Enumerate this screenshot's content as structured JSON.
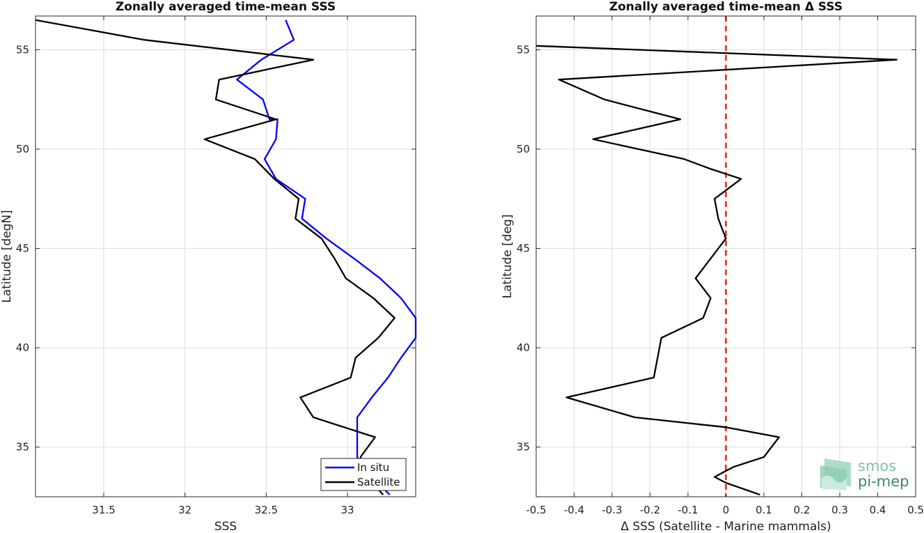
{
  "chart_data": [
    {
      "type": "line",
      "title": "Zonally averaged time-mean SSS",
      "xlabel": "SSS",
      "ylabel": "Latitude [degN]",
      "xlim": [
        31.08,
        33.42
      ],
      "ylim": [
        32.5,
        56.7
      ],
      "xticks": [
        "31.5",
        "32",
        "32.5",
        "33"
      ],
      "yticks": [
        "35",
        "40",
        "45",
        "50",
        "55"
      ],
      "grid": true,
      "legend": "bottom-right",
      "series": [
        {
          "name": "In situ",
          "color": "#0000ff",
          "points": [
            [
              32.62,
              56.5
            ],
            [
              32.67,
              55.5
            ],
            [
              32.47,
              54.5
            ],
            [
              32.32,
              53.5
            ],
            [
              32.48,
              52.5
            ],
            [
              32.52,
              51.5
            ],
            [
              32.57,
              51.5
            ],
            [
              32.56,
              50.5
            ],
            [
              32.49,
              49.5
            ],
            [
              32.56,
              48.5
            ],
            [
              32.74,
              47.5
            ],
            [
              32.72,
              46.5
            ],
            [
              32.87,
              45.5
            ],
            [
              33.04,
              44.5
            ],
            [
              33.2,
              43.5
            ],
            [
              33.33,
              42.5
            ],
            [
              33.42,
              41.5
            ],
            [
              33.42,
              40.5
            ],
            [
              33.33,
              39.5
            ],
            [
              33.25,
              38.5
            ],
            [
              33.15,
              37.5
            ],
            [
              33.06,
              36.5
            ],
            [
              33.06,
              35.5
            ],
            [
              33.06,
              34.5
            ],
            [
              33.15,
              33.5
            ],
            [
              33.26,
              32.6
            ]
          ]
        },
        {
          "name": "Satellite",
          "color": "#000000",
          "points": [
            [
              31.08,
              56.5
            ],
            [
              31.75,
              55.5
            ],
            [
              32.79,
              54.5
            ],
            [
              32.21,
              53.5
            ],
            [
              32.19,
              52.5
            ],
            [
              32.56,
              51.5
            ],
            [
              32.12,
              50.5
            ],
            [
              32.43,
              49.5
            ],
            [
              32.55,
              48.5
            ],
            [
              32.7,
              47.5
            ],
            [
              32.68,
              46.5
            ],
            [
              32.84,
              45.5
            ],
            [
              32.92,
              44.5
            ],
            [
              32.99,
              43.5
            ],
            [
              33.16,
              42.5
            ],
            [
              33.29,
              41.5
            ],
            [
              33.19,
              40.5
            ],
            [
              33.05,
              39.5
            ],
            [
              33.02,
              38.5
            ],
            [
              32.71,
              37.5
            ],
            [
              32.79,
              36.5
            ],
            [
              33.17,
              35.5
            ],
            [
              33.08,
              34.5
            ],
            [
              33.12,
              33.5
            ],
            [
              33.22,
              32.6
            ]
          ]
        }
      ]
    },
    {
      "type": "line",
      "title": "Zonally averaged time-mean Δ SSS",
      "xlabel": "Δ SSS (Satellite - Marine mammals)",
      "ylabel": "Latitude [deg]",
      "xlim": [
        -0.5,
        0.5
      ],
      "ylim": [
        32.5,
        56.7
      ],
      "xticks": [
        "-0.5",
        "-0.4",
        "-0.3",
        "-0.2",
        "-0.1",
        "0",
        "0.1",
        "0.2",
        "0.3",
        "0.4",
        "0.5"
      ],
      "yticks": [
        "35",
        "40",
        "45",
        "50",
        "55"
      ],
      "grid": true,
      "reference_line": {
        "x": 0,
        "color": "#e82020",
        "style": "dashed"
      },
      "series": [
        {
          "name": "",
          "color": "#000000",
          "points": [
            [
              -0.5,
              55.2
            ],
            [
              0.45,
              54.5
            ],
            [
              -0.44,
              53.5
            ],
            [
              -0.32,
              52.5
            ],
            [
              -0.12,
              51.5
            ],
            [
              -0.35,
              50.5
            ],
            [
              -0.11,
              49.5
            ],
            [
              -0.04,
              49.0
            ],
            [
              0.04,
              48.5
            ],
            [
              -0.03,
              47.5
            ],
            [
              -0.02,
              46.5
            ],
            [
              -0.01,
              46.0
            ],
            [
              0.0,
              45.5
            ],
            [
              -0.04,
              44.5
            ],
            [
              -0.08,
              43.5
            ],
            [
              -0.04,
              42.5
            ],
            [
              -0.06,
              41.5
            ],
            [
              -0.17,
              40.5
            ],
            [
              -0.18,
              39.5
            ],
            [
              -0.19,
              38.5
            ],
            [
              -0.42,
              37.5
            ],
            [
              -0.24,
              36.5
            ],
            [
              0.0,
              36.0
            ],
            [
              0.14,
              35.5
            ],
            [
              0.1,
              34.5
            ],
            [
              0.02,
              34.0
            ],
            [
              -0.03,
              33.5
            ],
            [
              0.0,
              33.2
            ],
            [
              0.09,
              32.6
            ]
          ]
        }
      ]
    }
  ],
  "logo": {
    "line1": "smos",
    "line2": "pi-mep"
  }
}
